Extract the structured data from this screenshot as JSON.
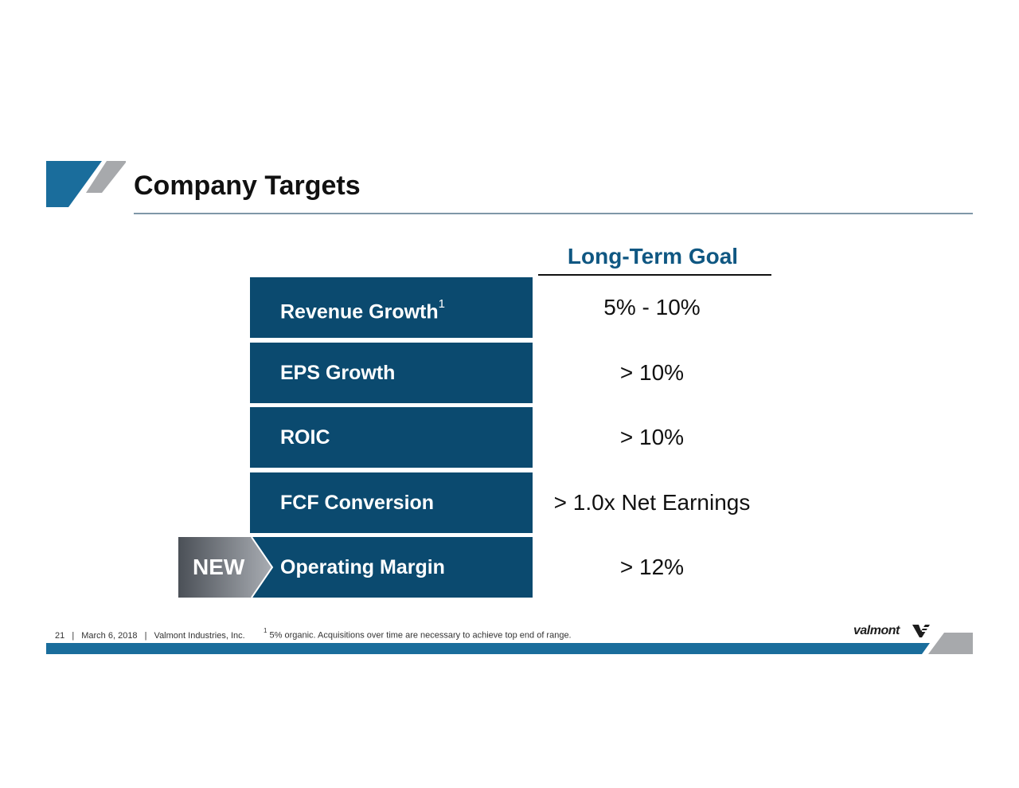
{
  "header": {
    "title": "Company Targets"
  },
  "table": {
    "column_heading": "Long-Term Goal",
    "rows": [
      {
        "metric": "Revenue Growth",
        "footnote_marker": "1",
        "goal": "5% - 10%"
      },
      {
        "metric": "EPS Growth",
        "footnote_marker": "",
        "goal": "> 10%"
      },
      {
        "metric": "ROIC",
        "footnote_marker": "",
        "goal": "> 10%"
      },
      {
        "metric": "FCF Conversion",
        "footnote_marker": "",
        "goal": "> 1.0x Net Earnings"
      },
      {
        "metric": "Operating Margin",
        "footnote_marker": "",
        "goal": "> 12%"
      }
    ],
    "new_badge": "NEW"
  },
  "footer": {
    "slide_number": "21",
    "separator": "|",
    "date": "March 6, 2018",
    "company": "Valmont Industries, Inc.",
    "footnote_marker": "1",
    "footnote_text": "5% organic. Acquisitions over time are necessary to achieve top end of range.",
    "logo_text": "valmont"
  },
  "colors": {
    "navy": "#0b4a6f",
    "heading_blue": "#0f5782",
    "footer_bar_blue": "#1a6d9c",
    "gray_accent": "#a7a9ac"
  }
}
